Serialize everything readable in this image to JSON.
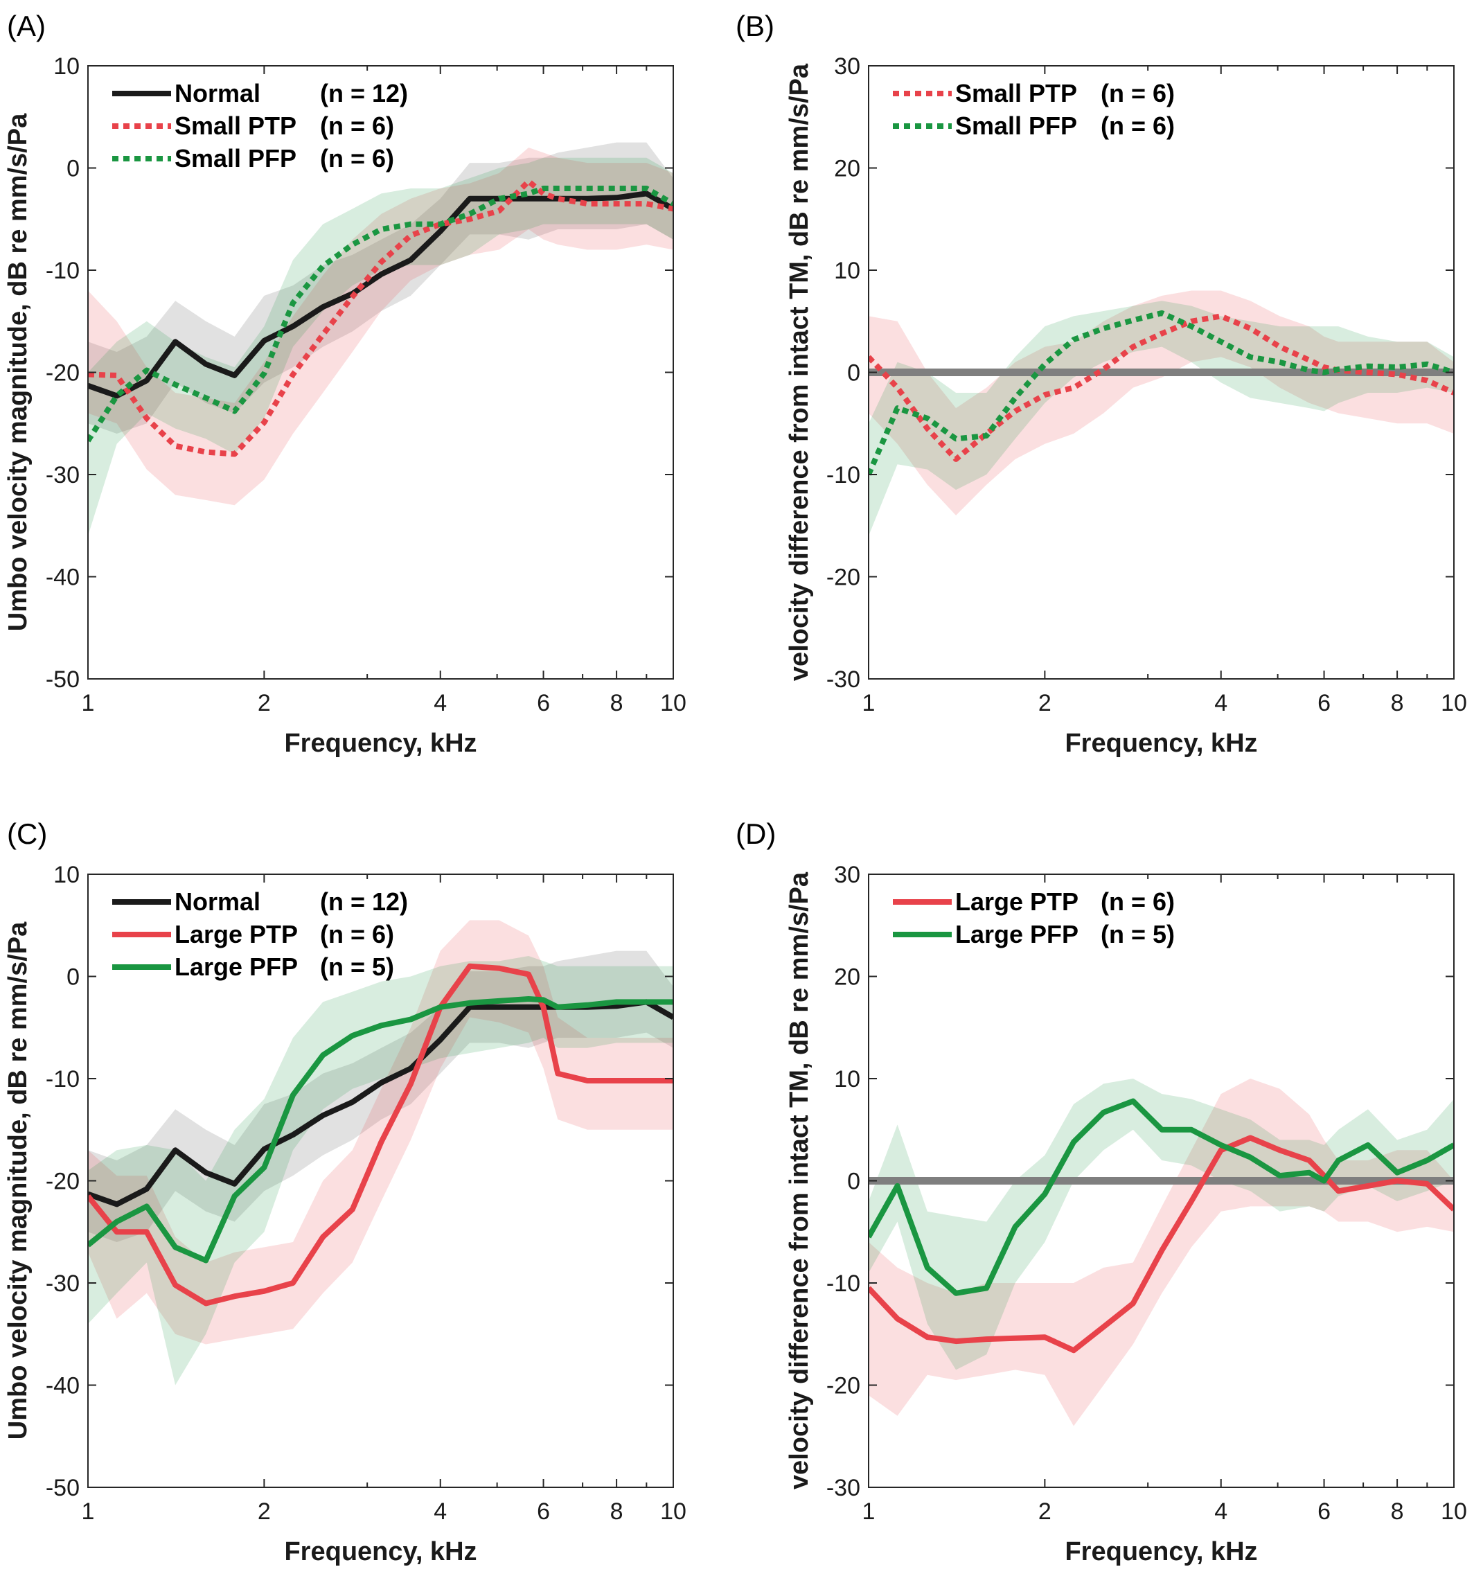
{
  "chart_data": [
    {
      "panel": "(A)",
      "type": "line",
      "xlabel": "Frequency, kHz",
      "ylabel": "Umbo velocity magnitude, dB re mm/s/Pa",
      "xscale": "log",
      "xlim": [
        1,
        10
      ],
      "ylim": [
        -50,
        10
      ],
      "xticks": [
        1,
        2,
        4,
        6,
        8,
        10
      ],
      "yticks": [
        10,
        0,
        -10,
        -20,
        -30,
        -40,
        -50
      ],
      "legend_position": "top-left",
      "series": [
        {
          "name": "Normal",
          "n": "(n = 12)",
          "color": "#1a1a1a",
          "style": "solid",
          "x": [
            1,
            1.12,
            1.26,
            1.41,
            1.59,
            1.78,
            2,
            2.24,
            2.52,
            2.83,
            3.17,
            3.56,
            4,
            4.49,
            5.04,
            5.66,
            6,
            6.35,
            7.13,
            8,
            9,
            10
          ],
          "y": [
            -21.3,
            -22.3,
            -20.8,
            -17,
            -19.2,
            -20.3,
            -16.9,
            -15.5,
            -13.6,
            -12.3,
            -10.4,
            -9.0,
            -6.2,
            -3.0,
            -3.0,
            -3.0,
            -3.0,
            -3.0,
            -3.0,
            -2.9,
            -2.5,
            -4.0
          ],
          "lo": [
            -25,
            -26,
            -25,
            -21,
            -23,
            -24,
            -21,
            -19.5,
            -17.5,
            -16,
            -14,
            -12.5,
            -9.5,
            -6.5,
            -6.5,
            -7,
            -6.5,
            -6,
            -6,
            -6,
            -5.5,
            -7
          ],
          "hi": [
            -17,
            -18,
            -16.5,
            -13,
            -15,
            -16.5,
            -12.5,
            -11.5,
            -9.5,
            -8.5,
            -7,
            -5.5,
            -3,
            0.5,
            0.5,
            1,
            1,
            1.5,
            2,
            2.5,
            2.5,
            -1
          ]
        },
        {
          "name": "Small PTP",
          "n": "(n = 6)",
          "color": "#e8424a",
          "style": "dotted",
          "x": [
            1,
            1.12,
            1.26,
            1.41,
            1.59,
            1.78,
            2,
            2.24,
            2.52,
            2.83,
            3.17,
            3.56,
            4,
            4.49,
            5.04,
            5.66,
            6,
            6.35,
            7.13,
            8,
            9,
            10
          ],
          "y": [
            -20.2,
            -20.3,
            -24.5,
            -27.2,
            -27.8,
            -28,
            -24.9,
            -20.2,
            -16.3,
            -12.6,
            -9.2,
            -6.6,
            -5.5,
            -5.0,
            -4.2,
            -1.3,
            -2.5,
            -3.0,
            -3.5,
            -3.5,
            -3.5,
            -4.0
          ],
          "lo": [
            -24,
            -25,
            -29.5,
            -32,
            -32.5,
            -33,
            -30.5,
            -26,
            -22,
            -18,
            -14,
            -11,
            -9.5,
            -8.5,
            -8,
            -6,
            -7,
            -7.5,
            -8,
            -8,
            -7.5,
            -8
          ],
          "hi": [
            -12,
            -15,
            -19.5,
            -22,
            -22.5,
            -23,
            -19,
            -14.5,
            -10.5,
            -7,
            -4.5,
            -3,
            -2,
            -1.5,
            -0.5,
            2,
            1.5,
            1,
            0.5,
            0.5,
            0.5,
            -0.5
          ]
        },
        {
          "name": "Small PFP",
          "n": "(n = 6)",
          "color": "#1a9641",
          "style": "dotted",
          "x": [
            1,
            1.12,
            1.26,
            1.41,
            1.59,
            1.78,
            2,
            2.24,
            2.52,
            2.83,
            3.17,
            3.56,
            4,
            4.49,
            5.04,
            5.66,
            6,
            6.35,
            7.13,
            8,
            9,
            10
          ],
          "y": [
            -26.7,
            -22.3,
            -19.8,
            -21.2,
            -22.5,
            -23.8,
            -20.1,
            -13.2,
            -9.6,
            -7.5,
            -6.0,
            -5.5,
            -5.5,
            -4.5,
            -3.0,
            -2.5,
            -2.0,
            -2.0,
            -2.0,
            -2.0,
            -2.0,
            -3.5
          ],
          "lo": [
            -36,
            -27,
            -24,
            -25.5,
            -26.5,
            -28,
            -24.5,
            -17.5,
            -14,
            -11.5,
            -10,
            -9.5,
            -9.5,
            -8.5,
            -6.5,
            -6,
            -5.5,
            -5.5,
            -5.5,
            -5.5,
            -5.5,
            -7
          ],
          "hi": [
            -20,
            -17,
            -15,
            -17,
            -18.5,
            -19.5,
            -15.5,
            -9,
            -5.5,
            -4,
            -2.5,
            -2,
            -2,
            -1,
            0,
            0.5,
            1,
            1,
            1,
            1,
            1,
            -0.5
          ]
        }
      ]
    },
    {
      "panel": "(B)",
      "type": "line",
      "xlabel": "Frequency, kHz",
      "ylabel": "velocity difference from intact TM, dB re mm/s/Pa",
      "xscale": "log",
      "xlim": [
        1,
        10
      ],
      "ylim": [
        -30,
        30
      ],
      "xticks": [
        1,
        2,
        4,
        6,
        8,
        10
      ],
      "yticks": [
        30,
        20,
        10,
        0,
        -10,
        -20,
        -30
      ],
      "legend_position": "top-left",
      "reference_line": 0,
      "series": [
        {
          "name": "Small PTP",
          "n": "(n = 6)",
          "color": "#e8424a",
          "style": "dotted",
          "x": [
            1,
            1.12,
            1.26,
            1.41,
            1.59,
            1.78,
            2,
            2.24,
            2.52,
            2.83,
            3.17,
            3.56,
            4,
            4.49,
            5.04,
            5.66,
            6,
            6.35,
            7.13,
            8,
            9,
            10
          ],
          "y": [
            1.5,
            -1.5,
            -5.5,
            -8.5,
            -6.0,
            -3.8,
            -2.2,
            -1.5,
            0.3,
            2.5,
            3.8,
            5.0,
            5.5,
            4.3,
            2.5,
            1.2,
            0.5,
            0.2,
            0.0,
            -0.2,
            -0.8,
            -2.0
          ],
          "lo": [
            -4,
            -7,
            -11,
            -14,
            -11,
            -8.5,
            -7,
            -6,
            -4,
            -1.5,
            -0.5,
            1,
            1.5,
            0.5,
            -1.5,
            -3,
            -3.5,
            -4,
            -4.5,
            -5,
            -5,
            -6
          ],
          "hi": [
            5.5,
            5,
            0,
            -3.5,
            -1.5,
            1,
            2.5,
            3,
            5,
            6.5,
            7.5,
            8,
            8,
            7,
            5.5,
            4.5,
            3.5,
            3,
            3,
            3,
            3,
            1
          ]
        },
        {
          "name": "Small PFP",
          "n": "(n = 6)",
          "color": "#1a9641",
          "style": "dotted",
          "x": [
            1,
            1.12,
            1.26,
            1.41,
            1.59,
            1.78,
            2,
            2.24,
            2.52,
            2.83,
            3.17,
            3.56,
            4,
            4.49,
            5.04,
            5.66,
            6,
            6.35,
            7.13,
            8,
            9,
            10
          ],
          "y": [
            -10,
            -3.5,
            -4.5,
            -6.5,
            -6.2,
            -2.5,
            0.8,
            3.2,
            4.3,
            5.1,
            5.8,
            4.5,
            3.0,
            1.5,
            1.0,
            0.2,
            0.0,
            0.3,
            0.6,
            0.5,
            0.8,
            0.0
          ],
          "lo": [
            -16,
            -9,
            -9.5,
            -11.5,
            -10,
            -6.5,
            -3,
            -0.5,
            1,
            2,
            2.5,
            1,
            -1,
            -2.5,
            -3,
            -3.5,
            -3.8,
            -3,
            -2,
            -2,
            -1.5,
            -2
          ],
          "hi": [
            -5,
            1,
            0,
            -2,
            -2,
            1.5,
            4.5,
            5.5,
            6,
            6.5,
            7,
            6.5,
            5.5,
            5,
            4.5,
            4.5,
            4.5,
            4.5,
            3.5,
            3,
            3,
            1.5
          ]
        }
      ]
    },
    {
      "panel": "(C)",
      "type": "line",
      "xlabel": "Frequency, kHz",
      "ylabel": "Umbo velocity magnitude, dB re mm/s/Pa",
      "xscale": "log",
      "xlim": [
        1,
        10
      ],
      "ylim": [
        -50,
        10
      ],
      "xticks": [
        1,
        2,
        4,
        6,
        8,
        10
      ],
      "yticks": [
        10,
        0,
        -10,
        -20,
        -30,
        -40,
        -50
      ],
      "legend_position": "top-left",
      "series": [
        {
          "name": "Normal",
          "n": "(n = 12)",
          "color": "#1a1a1a",
          "style": "solid",
          "x": [
            1,
            1.12,
            1.26,
            1.41,
            1.59,
            1.78,
            2,
            2.24,
            2.52,
            2.83,
            3.17,
            3.56,
            4,
            4.49,
            5.04,
            5.66,
            6,
            6.35,
            7.13,
            8,
            9,
            10
          ],
          "y": [
            -21.3,
            -22.3,
            -20.8,
            -17,
            -19.2,
            -20.3,
            -16.9,
            -15.5,
            -13.6,
            -12.3,
            -10.4,
            -9.0,
            -6.2,
            -3.0,
            -3.0,
            -3.0,
            -3.0,
            -3.0,
            -3.0,
            -2.9,
            -2.5,
            -4.0
          ],
          "lo": [
            -25,
            -26,
            -25,
            -21,
            -23,
            -24,
            -21,
            -19.5,
            -17.5,
            -16,
            -14,
            -12.5,
            -9.5,
            -6.5,
            -6.5,
            -7,
            -6.5,
            -6,
            -6,
            -6,
            -5.5,
            -7
          ],
          "hi": [
            -17,
            -18,
            -16.5,
            -13,
            -15,
            -16.5,
            -12.5,
            -11.5,
            -9.5,
            -8.5,
            -7,
            -5.5,
            -3,
            0.5,
            0.5,
            1,
            1,
            1.5,
            2,
            2.5,
            2.5,
            -1
          ]
        },
        {
          "name": "Large PTP",
          "n": "(n = 6)",
          "color": "#e8424a",
          "style": "solid",
          "x": [
            1,
            1.12,
            1.26,
            1.41,
            1.59,
            1.78,
            2,
            2.24,
            2.52,
            2.83,
            3.17,
            3.56,
            4,
            4.49,
            5.04,
            5.66,
            6,
            6.35,
            7.13,
            8,
            9,
            10
          ],
          "y": [
            -21.5,
            -25,
            -25,
            -30.2,
            -32,
            -31.3,
            -30.8,
            -30,
            -25.5,
            -22.8,
            -16.2,
            -10.5,
            -3.0,
            1.0,
            0.8,
            0.2,
            -3.0,
            -9.5,
            -10.2,
            -10.2,
            -10.2,
            -10.2
          ],
          "lo": [
            -27,
            -33.5,
            -31,
            -35,
            -36,
            -35.5,
            -35,
            -34.5,
            -31,
            -28,
            -22,
            -16,
            -9,
            -4,
            -4.5,
            -5.5,
            -9,
            -14,
            -15,
            -15,
            -15,
            -15
          ],
          "hi": [
            -17,
            -19.5,
            -19.5,
            -25.5,
            -28,
            -27,
            -26.5,
            -26,
            -20,
            -17,
            -11,
            -5,
            2.5,
            5.5,
            5.5,
            4,
            1,
            -4,
            -6,
            -6,
            -6,
            -6
          ]
        },
        {
          "name": "Large PFP",
          "n": "(n = 5)",
          "color": "#1a9641",
          "style": "solid",
          "x": [
            1,
            1.12,
            1.26,
            1.41,
            1.59,
            1.78,
            2,
            2.24,
            2.52,
            2.83,
            3.17,
            3.56,
            4,
            4.49,
            5.04,
            5.66,
            6,
            6.35,
            7.13,
            8,
            9,
            10
          ],
          "y": [
            -26.3,
            -24,
            -22.5,
            -26.5,
            -27.8,
            -21.5,
            -18.7,
            -11.6,
            -7.7,
            -5.8,
            -4.8,
            -4.2,
            -3.0,
            -2.6,
            -2.4,
            -2.2,
            -2.3,
            -3.0,
            -2.8,
            -2.5,
            -2.5,
            -2.5
          ],
          "lo": [
            -34,
            -31,
            -28,
            -40,
            -35,
            -28,
            -25,
            -17,
            -13,
            -11,
            -10,
            -9,
            -8,
            -7.5,
            -7,
            -6.5,
            -6,
            -7,
            -7,
            -6.5,
            -6.5,
            -6.5
          ],
          "hi": [
            -19,
            -17,
            -16.5,
            -17,
            -20,
            -15,
            -12,
            -6,
            -2.5,
            -1.5,
            -0.5,
            0,
            1,
            1.5,
            1.5,
            2,
            1.5,
            1,
            1,
            1,
            1,
            1
          ]
        }
      ]
    },
    {
      "panel": "(D)",
      "type": "line",
      "xlabel": "Frequency, kHz",
      "ylabel": "velocity difference from intact TM, dB re mm/s/Pa",
      "xscale": "log",
      "xlim": [
        1,
        10
      ],
      "ylim": [
        -30,
        30
      ],
      "xticks": [
        1,
        2,
        4,
        6,
        8,
        10
      ],
      "yticks": [
        30,
        20,
        10,
        0,
        -10,
        -20,
        -30
      ],
      "legend_position": "top-left",
      "reference_line": 0,
      "series": [
        {
          "name": "Large PTP",
          "n": "(n = 6)",
          "color": "#e8424a",
          "style": "solid",
          "x": [
            1,
            1.12,
            1.26,
            1.41,
            1.59,
            1.78,
            2,
            2.24,
            2.52,
            2.83,
            3.17,
            3.56,
            4,
            4.49,
            5.04,
            5.66,
            6,
            6.35,
            7.13,
            8,
            9,
            10
          ],
          "y": [
            -10.5,
            -13.5,
            -15.3,
            -15.7,
            -15.5,
            -15.4,
            -15.3,
            -16.6,
            -14.3,
            -12.0,
            -6.8,
            -2.0,
            3.0,
            4.2,
            3.0,
            2.0,
            0.5,
            -1.0,
            -0.5,
            0.0,
            -0.3,
            -2.8
          ],
          "lo": [
            -21,
            -23,
            -19,
            -19.5,
            -19,
            -18.5,
            -19,
            -24,
            -20,
            -16,
            -11,
            -6.5,
            -3,
            -2.5,
            -2.5,
            -2.5,
            -3,
            -4,
            -4,
            -5,
            -4.5,
            -5
          ],
          "hi": [
            -6,
            -8.5,
            -10,
            -11,
            -10,
            -10,
            -10,
            -10,
            -8.5,
            -8,
            -2.5,
            3,
            8.5,
            10,
            9,
            6.5,
            4,
            2,
            2,
            3,
            3,
            0
          ]
        },
        {
          "name": "Large PFP",
          "n": "(n = 5)",
          "color": "#1a9641",
          "style": "solid",
          "x": [
            1,
            1.12,
            1.26,
            1.41,
            1.59,
            1.78,
            2,
            2.24,
            2.52,
            2.83,
            3.17,
            3.56,
            4,
            4.49,
            5.04,
            5.66,
            6,
            6.35,
            7.13,
            8,
            9,
            10
          ],
          "y": [
            -5.5,
            -0.5,
            -8.5,
            -11.0,
            -10.5,
            -4.5,
            -1.3,
            3.8,
            6.7,
            7.8,
            5.0,
            5.0,
            3.5,
            2.3,
            0.5,
            0.8,
            0.0,
            2.0,
            3.5,
            0.8,
            2.0,
            3.5
          ],
          "lo": [
            -9,
            -4,
            -14,
            -18.5,
            -17,
            -10,
            -6,
            0,
            3,
            5,
            2,
            1.5,
            0,
            -1,
            -3,
            -2.5,
            -3,
            -1.5,
            -0.5,
            -2,
            -1,
            0
          ],
          "hi": [
            -2,
            5.5,
            -3,
            -3.5,
            -4,
            0,
            2.5,
            7.5,
            9.5,
            10,
            8.5,
            8,
            7,
            6,
            4,
            4,
            3.5,
            5,
            7,
            4,
            5,
            8
          ]
        }
      ]
    }
  ]
}
